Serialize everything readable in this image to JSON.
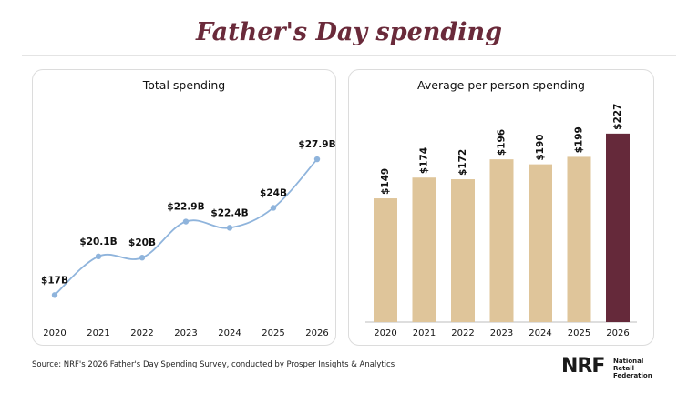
{
  "title": "Father's Day spending",
  "source": "Source: NRF's 2026 Father's Day Spending Survey, conducted by Prosper Insights & Analytics",
  "logo": {
    "mark": "NRF",
    "line1": "National",
    "line2": "Retail",
    "line3": "Federation"
  },
  "chart_data": [
    {
      "type": "line",
      "title": "Total spending",
      "categories": [
        "2020",
        "2021",
        "2022",
        "2023",
        "2024",
        "2025",
        "2026"
      ],
      "values": [
        17,
        20.1,
        20,
        22.9,
        22.4,
        24,
        27.9
      ],
      "labels": [
        "$17B",
        "$20.1B",
        "$20B",
        "$22.9B",
        "$22.4B",
        "$24B",
        "$27.9B"
      ],
      "color": "#8fb4dc",
      "ylim": [
        16,
        29
      ],
      "grid": false
    },
    {
      "type": "bar",
      "title": "Average per-person spending",
      "categories": [
        "2020",
        "2021",
        "2022",
        "2023",
        "2024",
        "2025",
        "2026"
      ],
      "values": [
        149,
        174,
        172,
        196,
        190,
        199,
        227
      ],
      "labels": [
        "$149",
        "$174",
        "$172",
        "$196",
        "$190",
        "$199",
        "$227"
      ],
      "color": "#dfc59a",
      "highlight_color": "#65293a",
      "highlight_index": 6,
      "ylim": [
        0,
        240
      ],
      "grid": false
    }
  ]
}
